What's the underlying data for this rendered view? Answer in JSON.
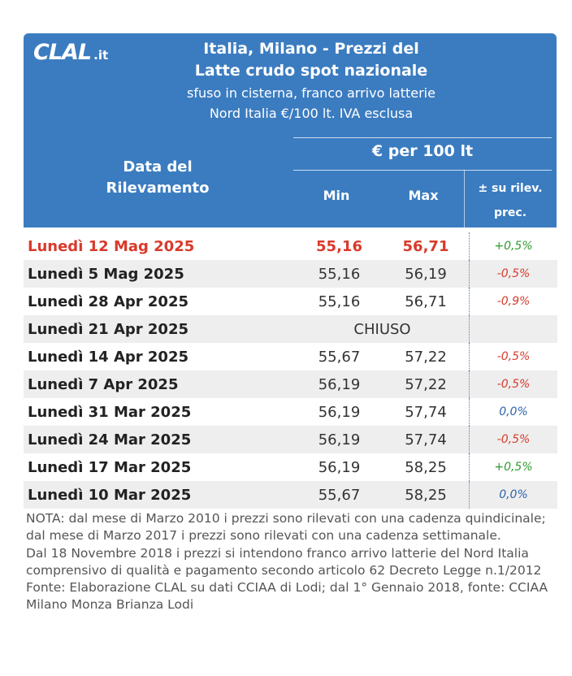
{
  "logo": {
    "main": "CLAL",
    "suffix": ".it"
  },
  "header": {
    "title_line1": "Italia, Milano - Prezzi del",
    "title_line2": "Latte crudo spot nazionale",
    "subtitle_line1": "sfuso in cisterna, franco arrivo latterie",
    "subtitle_line2": "Nord Italia €/100 lt. IVA esclusa"
  },
  "columns": {
    "date_line1": "Data del",
    "date_line2": "Rilevamento",
    "group": "€ per 100 lt",
    "min": "Min",
    "max": "Max",
    "var_line1": "± su rilev.",
    "var_line2": "prec."
  },
  "rows": [
    {
      "date": "Lunedì 12 Mag 2025",
      "min": "55,16",
      "max": "56,71",
      "var": "+0,5%",
      "var_type": "pos"
    },
    {
      "date": "Lunedì 5 Mag 2025",
      "min": "55,16",
      "max": "56,19",
      "var": "-0,5%",
      "var_type": "neg"
    },
    {
      "date": "Lunedì 28 Apr 2025",
      "min": "55,16",
      "max": "56,71",
      "var": "-0,9%",
      "var_type": "neg"
    },
    {
      "date": "Lunedì 21 Apr 2025",
      "closed": "CHIUSO",
      "var": "",
      "var_type": "none"
    },
    {
      "date": "Lunedì 14 Apr 2025",
      "min": "55,67",
      "max": "57,22",
      "var": "-0,5%",
      "var_type": "neg"
    },
    {
      "date": "Lunedì 7 Apr 2025",
      "min": "56,19",
      "max": "57,22",
      "var": "-0,5%",
      "var_type": "neg"
    },
    {
      "date": "Lunedì 31 Mar 2025",
      "min": "56,19",
      "max": "57,74",
      "var": "0,0%",
      "var_type": "zero"
    },
    {
      "date": "Lunedì 24 Mar 2025",
      "min": "56,19",
      "max": "57,74",
      "var": "-0,5%",
      "var_type": "neg"
    },
    {
      "date": "Lunedì 17 Mar 2025",
      "min": "56,19",
      "max": "58,25",
      "var": "+0,5%",
      "var_type": "pos"
    },
    {
      "date": "Lunedì 10 Mar 2025",
      "min": "55,67",
      "max": "58,25",
      "var": "0,0%",
      "var_type": "zero"
    }
  ],
  "notes": {
    "nota": "NOTA: dal mese di Marzo 2010 i prezzi sono rilevati con una cadenza quindicinale; dal mese di Marzo 2017 i prezzi sono rilevati con una cadenza settimanale.",
    "franco": "Dal 18 Novembre 2018 i prezzi si intendono franco arrivo latterie del Nord Italia comprensivo di qualità e pagamento secondo articolo 62 Decreto Legge n.1/2012",
    "fonte": "Fonte: Elaborazione CLAL su dati CCIAA di Lodi; dal 1° Gennaio 2018, fonte: CCIAA Milano Monza Brianza Lodi"
  },
  "colors": {
    "header_bg": "#3b7cc0",
    "current_row": "#d83a2b",
    "positive": "#2e9a2e",
    "negative": "#d83a2b",
    "zero": "#2f64ad",
    "stripe": "#eeeeee"
  }
}
